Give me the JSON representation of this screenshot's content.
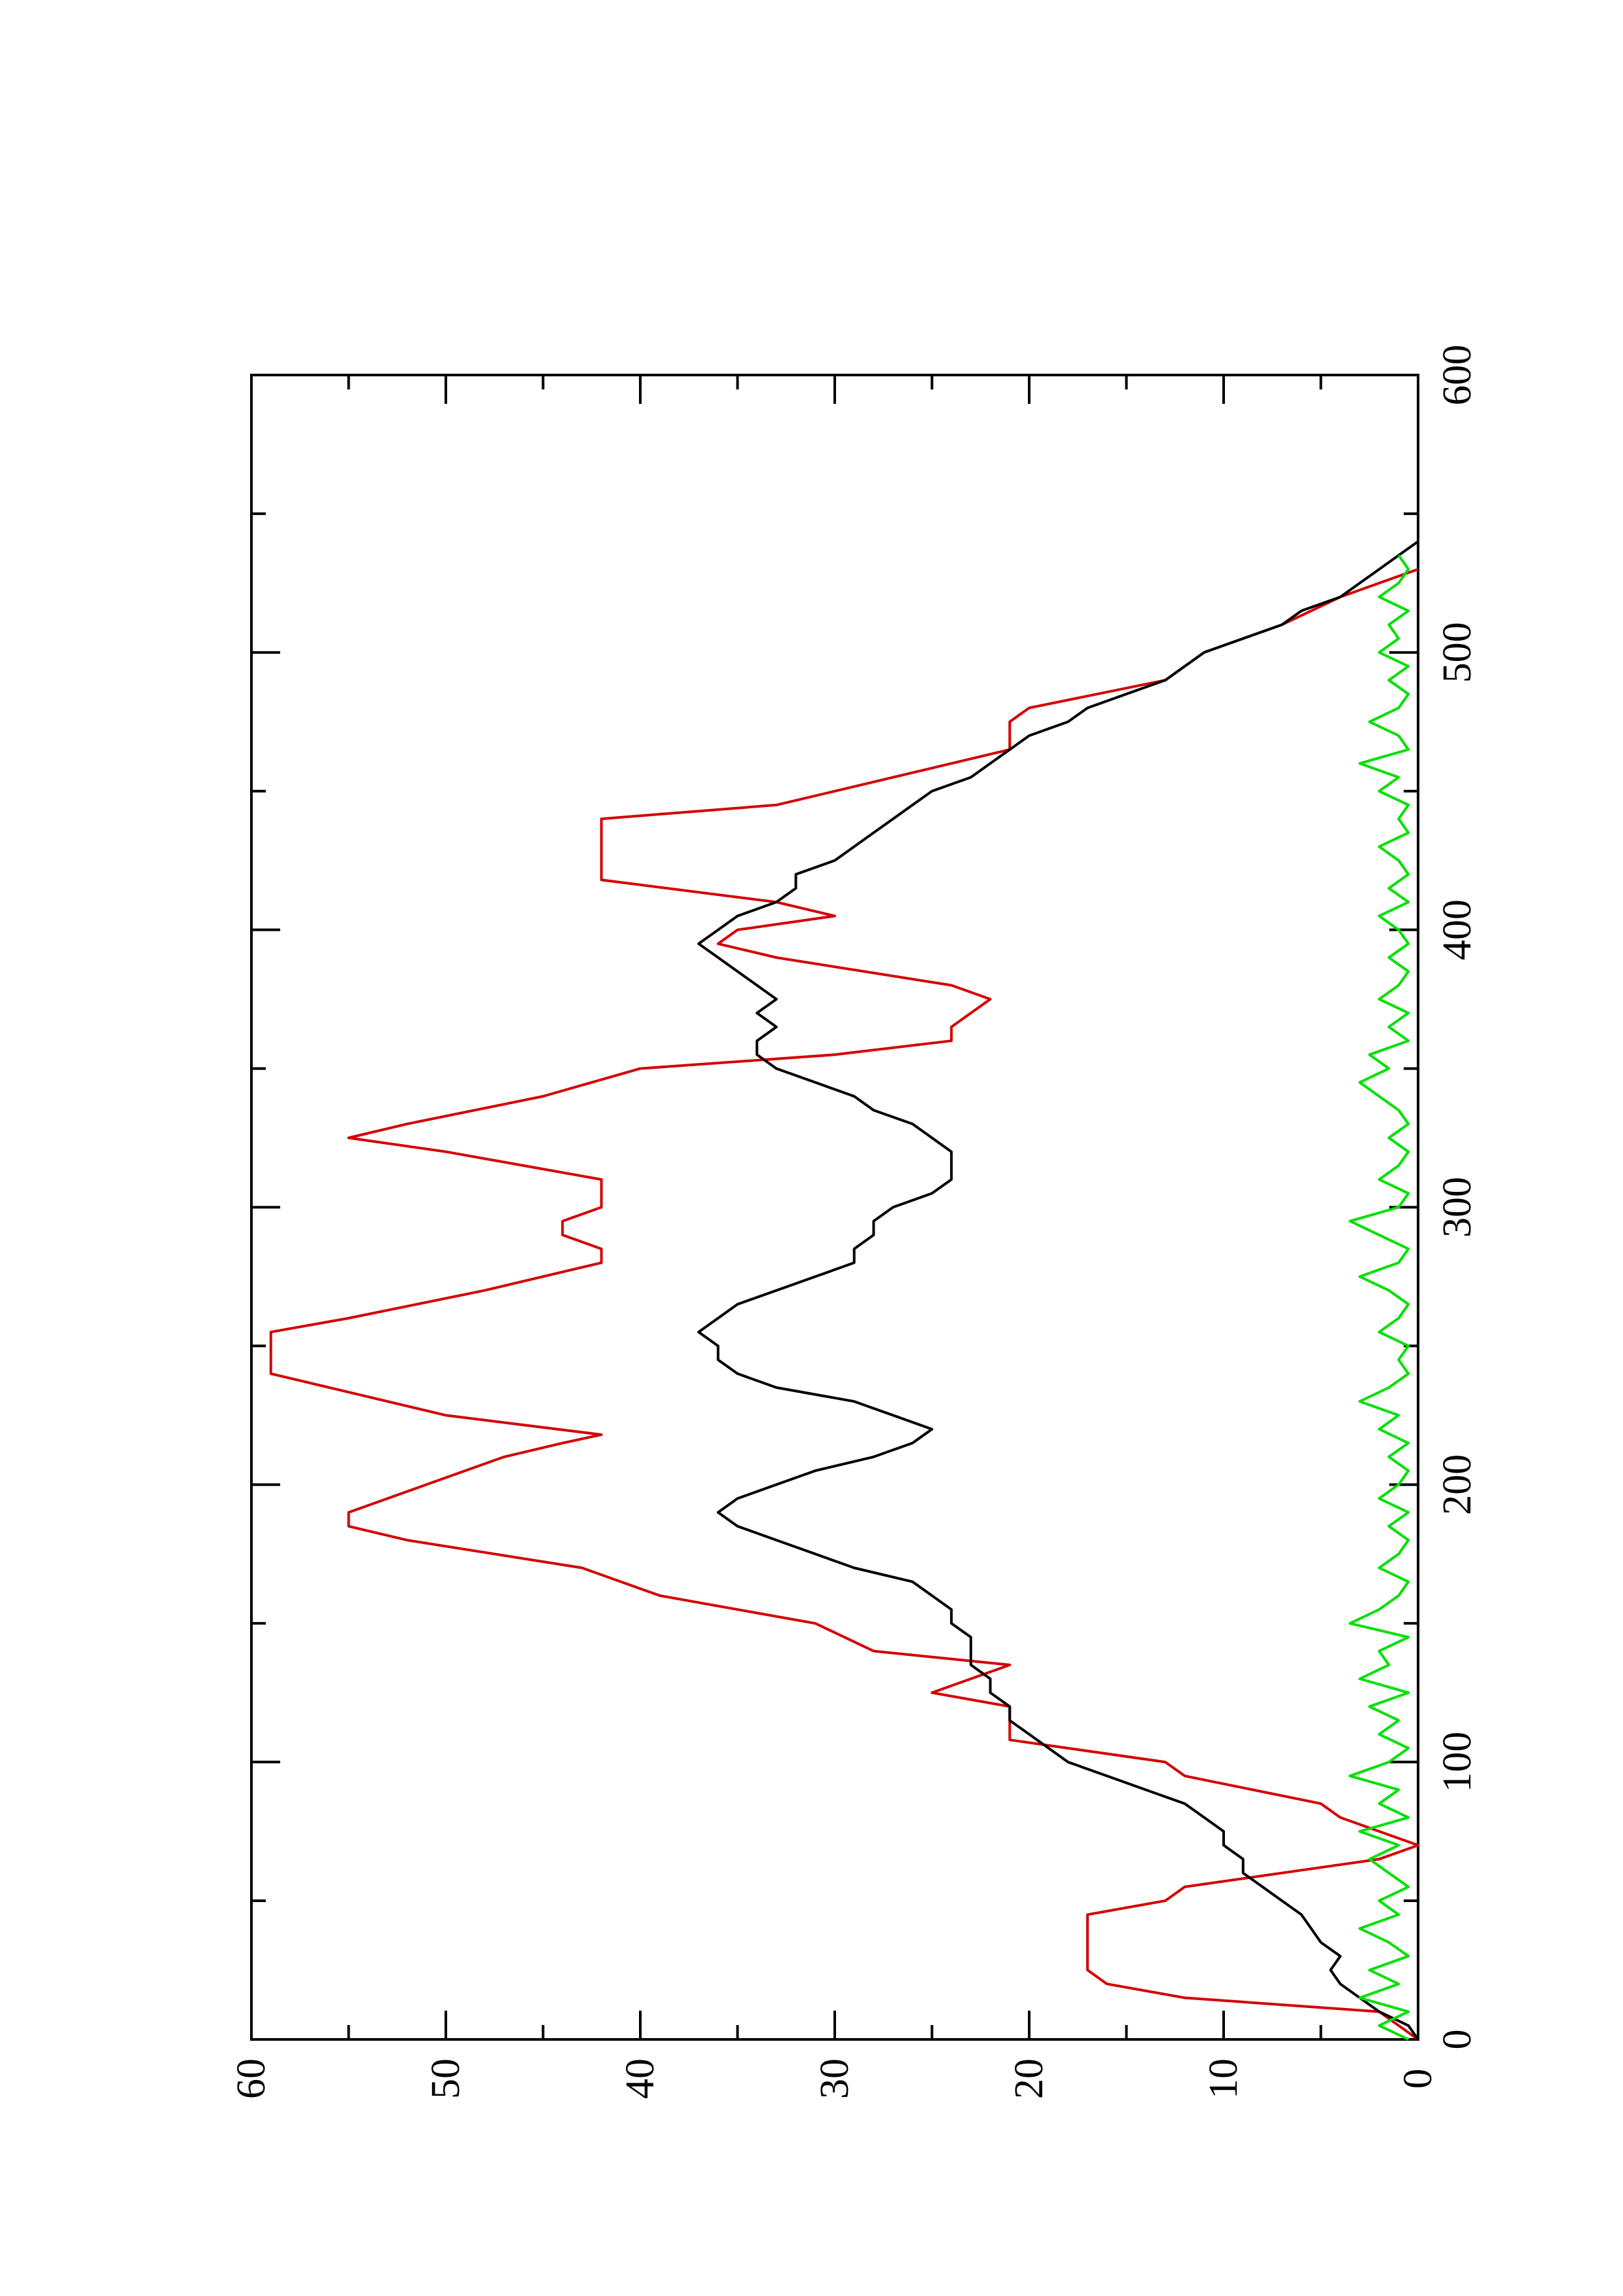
{
  "chart_data": {
    "type": "line",
    "title": "",
    "xlabel": "",
    "ylabel": "",
    "xlim": [
      0,
      600
    ],
    "ylim": [
      0,
      60
    ],
    "orientation": "rotated-90-ccw",
    "grid": false,
    "legend": "none",
    "x_ticks": [
      0,
      100,
      200,
      300,
      400,
      500,
      600
    ],
    "y_ticks": [
      0,
      10,
      20,
      30,
      40,
      50,
      60
    ],
    "series": [
      {
        "color": "#d40000",
        "values": [
          [
            0,
            0
          ],
          [
            10,
            2
          ],
          [
            15,
            12
          ],
          [
            20,
            16
          ],
          [
            25,
            17
          ],
          [
            45,
            17
          ],
          [
            50,
            13
          ],
          [
            55,
            12
          ],
          [
            65,
            2
          ],
          [
            70,
            0
          ],
          [
            75,
            2
          ],
          [
            80,
            4
          ],
          [
            85,
            5
          ],
          [
            95,
            12
          ],
          [
            100,
            13
          ],
          [
            108,
            21
          ],
          [
            120,
            21
          ],
          [
            125,
            25
          ],
          [
            130,
            23
          ],
          [
            135,
            21
          ],
          [
            140,
            28
          ],
          [
            150,
            31
          ],
          [
            160,
            39
          ],
          [
            170,
            43
          ],
          [
            180,
            52
          ],
          [
            185,
            55
          ],
          [
            190,
            55
          ],
          [
            200,
            51
          ],
          [
            210,
            47
          ],
          [
            215,
            44
          ],
          [
            218,
            42
          ],
          [
            225,
            50
          ],
          [
            230,
            53
          ],
          [
            240,
            59
          ],
          [
            255,
            59
          ],
          [
            260,
            55
          ],
          [
            270,
            48
          ],
          [
            280,
            42
          ],
          [
            285,
            42
          ],
          [
            290,
            44
          ],
          [
            295,
            44
          ],
          [
            300,
            42
          ],
          [
            310,
            42
          ],
          [
            315,
            46
          ],
          [
            320,
            50
          ],
          [
            325,
            55
          ],
          [
            330,
            52
          ],
          [
            340,
            45
          ],
          [
            350,
            40
          ],
          [
            355,
            30
          ],
          [
            360,
            24
          ],
          [
            365,
            24
          ],
          [
            375,
            22
          ],
          [
            380,
            24
          ],
          [
            390,
            33
          ],
          [
            395,
            36
          ],
          [
            400,
            35
          ],
          [
            405,
            30
          ],
          [
            410,
            33
          ],
          [
            418,
            42
          ],
          [
            440,
            42
          ],
          [
            445,
            33
          ],
          [
            450,
            30
          ],
          [
            460,
            24
          ],
          [
            465,
            21
          ],
          [
            475,
            21
          ],
          [
            480,
            20
          ],
          [
            490,
            13
          ],
          [
            500,
            11
          ],
          [
            510,
            7
          ],
          [
            520,
            4
          ],
          [
            525,
            2
          ],
          [
            530,
            0
          ]
        ]
      },
      {
        "color": "#000000",
        "values": [
          [
            0,
            0
          ],
          [
            5,
            0.5
          ],
          [
            10,
            2
          ],
          [
            15,
            3
          ],
          [
            20,
            4
          ],
          [
            25,
            4.5
          ],
          [
            30,
            4
          ],
          [
            35,
            5
          ],
          [
            40,
            5.5
          ],
          [
            45,
            6
          ],
          [
            50,
            7
          ],
          [
            55,
            8
          ],
          [
            60,
            9
          ],
          [
            65,
            9
          ],
          [
            70,
            10
          ],
          [
            75,
            10
          ],
          [
            80,
            11
          ],
          [
            85,
            12
          ],
          [
            90,
            14
          ],
          [
            95,
            16
          ],
          [
            100,
            18
          ],
          [
            105,
            19
          ],
          [
            110,
            20
          ],
          [
            115,
            21
          ],
          [
            120,
            21
          ],
          [
            125,
            22
          ],
          [
            130,
            22
          ],
          [
            135,
            23
          ],
          [
            140,
            23
          ],
          [
            145,
            23
          ],
          [
            150,
            24
          ],
          [
            155,
            24
          ],
          [
            160,
            25
          ],
          [
            165,
            26
          ],
          [
            170,
            29
          ],
          [
            175,
            31
          ],
          [
            180,
            33
          ],
          [
            185,
            35
          ],
          [
            190,
            36
          ],
          [
            195,
            35
          ],
          [
            200,
            33
          ],
          [
            205,
            31
          ],
          [
            210,
            28
          ],
          [
            215,
            26
          ],
          [
            220,
            25
          ],
          [
            225,
            27
          ],
          [
            230,
            29
          ],
          [
            235,
            33
          ],
          [
            240,
            35
          ],
          [
            245,
            36
          ],
          [
            250,
            36
          ],
          [
            255,
            37
          ],
          [
            260,
            36
          ],
          [
            265,
            35
          ],
          [
            270,
            33
          ],
          [
            275,
            31
          ],
          [
            280,
            29
          ],
          [
            285,
            29
          ],
          [
            290,
            28
          ],
          [
            295,
            28
          ],
          [
            300,
            27
          ],
          [
            305,
            25
          ],
          [
            310,
            24
          ],
          [
            315,
            24
          ],
          [
            320,
            24
          ],
          [
            325,
            25
          ],
          [
            330,
            26
          ],
          [
            335,
            28
          ],
          [
            340,
            29
          ],
          [
            345,
            31
          ],
          [
            350,
            33
          ],
          [
            355,
            34
          ],
          [
            360,
            34
          ],
          [
            365,
            33
          ],
          [
            370,
            34
          ],
          [
            375,
            33
          ],
          [
            380,
            34
          ],
          [
            385,
            35
          ],
          [
            390,
            36
          ],
          [
            395,
            37
          ],
          [
            400,
            36
          ],
          [
            405,
            35
          ],
          [
            410,
            33
          ],
          [
            415,
            32
          ],
          [
            420,
            32
          ],
          [
            425,
            30
          ],
          [
            430,
            29
          ],
          [
            435,
            28
          ],
          [
            440,
            27
          ],
          [
            445,
            26
          ],
          [
            450,
            25
          ],
          [
            455,
            23
          ],
          [
            460,
            22
          ],
          [
            465,
            21
          ],
          [
            470,
            20
          ],
          [
            475,
            18
          ],
          [
            480,
            17
          ],
          [
            485,
            15
          ],
          [
            490,
            13
          ],
          [
            495,
            12
          ],
          [
            500,
            11
          ],
          [
            505,
            9
          ],
          [
            510,
            7
          ],
          [
            515,
            6
          ],
          [
            520,
            4
          ],
          [
            525,
            3
          ],
          [
            530,
            2
          ],
          [
            535,
            1
          ],
          [
            540,
            0
          ]
        ]
      },
      {
        "color": "#00e000",
        "values": [
          [
            0,
            0.5
          ],
          [
            5,
            2
          ],
          [
            10,
            0.5
          ],
          [
            15,
            3
          ],
          [
            20,
            1
          ],
          [
            25,
            2.5
          ],
          [
            30,
            0.5
          ],
          [
            35,
            1.5
          ],
          [
            40,
            3
          ],
          [
            45,
            1
          ],
          [
            50,
            2
          ],
          [
            55,
            0.5
          ],
          [
            60,
            1.5
          ],
          [
            65,
            2.5
          ],
          [
            70,
            1
          ],
          [
            75,
            3
          ],
          [
            80,
            0.5
          ],
          [
            85,
            2
          ],
          [
            90,
            1
          ],
          [
            95,
            3.5
          ],
          [
            100,
            1.5
          ],
          [
            105,
            0.5
          ],
          [
            110,
            2
          ],
          [
            115,
            1
          ],
          [
            120,
            2.5
          ],
          [
            125,
            0.5
          ],
          [
            130,
            3
          ],
          [
            135,
            1.5
          ],
          [
            140,
            2
          ],
          [
            145,
            0.5
          ],
          [
            150,
            3.5
          ],
          [
            155,
            2
          ],
          [
            160,
            1
          ],
          [
            165,
            0.5
          ],
          [
            170,
            2
          ],
          [
            175,
            1
          ],
          [
            180,
            0.5
          ],
          [
            185,
            1.5
          ],
          [
            190,
            0.5
          ],
          [
            195,
            2
          ],
          [
            200,
            1
          ],
          [
            205,
            0.5
          ],
          [
            210,
            1.5
          ],
          [
            215,
            0.5
          ],
          [
            220,
            2
          ],
          [
            225,
            1
          ],
          [
            230,
            3
          ],
          [
            235,
            1.5
          ],
          [
            240,
            0.5
          ],
          [
            245,
            1
          ],
          [
            250,
            0.5
          ],
          [
            255,
            2
          ],
          [
            260,
            1
          ],
          [
            265,
            0.5
          ],
          [
            270,
            1.5
          ],
          [
            275,
            3
          ],
          [
            280,
            1
          ],
          [
            285,
            0.5
          ],
          [
            290,
            2
          ],
          [
            295,
            3.5
          ],
          [
            300,
            1
          ],
          [
            305,
            0.5
          ],
          [
            310,
            2
          ],
          [
            315,
            1
          ],
          [
            320,
            0.5
          ],
          [
            325,
            1.5
          ],
          [
            330,
            0.5
          ],
          [
            335,
            1
          ],
          [
            340,
            2
          ],
          [
            345,
            3
          ],
          [
            350,
            1.5
          ],
          [
            355,
            2.5
          ],
          [
            360,
            0.5
          ],
          [
            365,
            1.5
          ],
          [
            370,
            0.5
          ],
          [
            375,
            2
          ],
          [
            380,
            1
          ],
          [
            385,
            0.5
          ],
          [
            390,
            1.5
          ],
          [
            395,
            0.5
          ],
          [
            400,
            1
          ],
          [
            405,
            2
          ],
          [
            410,
            0.5
          ],
          [
            415,
            1.5
          ],
          [
            420,
            0.5
          ],
          [
            425,
            1
          ],
          [
            430,
            2
          ],
          [
            435,
            0.5
          ],
          [
            440,
            1
          ],
          [
            445,
            0.5
          ],
          [
            450,
            2
          ],
          [
            455,
            1
          ],
          [
            460,
            3
          ],
          [
            465,
            0.5
          ],
          [
            470,
            1
          ],
          [
            475,
            2.5
          ],
          [
            480,
            1
          ],
          [
            485,
            0.5
          ],
          [
            490,
            1.5
          ],
          [
            495,
            0.5
          ],
          [
            500,
            2
          ],
          [
            505,
            1
          ],
          [
            510,
            1.5
          ],
          [
            515,
            0.5
          ],
          [
            520,
            2
          ],
          [
            525,
            1
          ],
          [
            530,
            0.5
          ],
          [
            535,
            1
          ]
        ]
      }
    ]
  }
}
